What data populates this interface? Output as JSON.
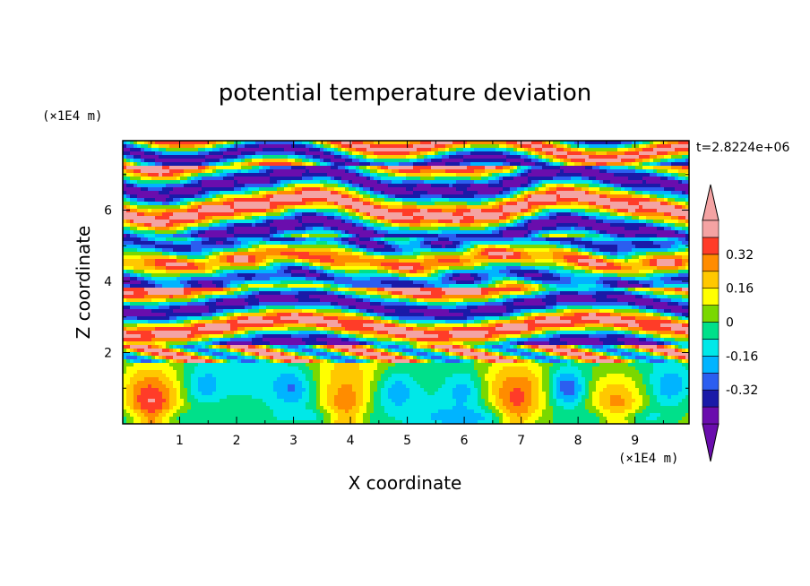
{
  "chart_data": {
    "type": "heatmap",
    "title": "potential temperature deviation",
    "xlabel": "X coordinate",
    "ylabel": "Z coordinate",
    "x_unit": "(×1E4 m)",
    "y_unit": "(×1E4 m)",
    "time_label": "t=2.8224e+06",
    "xlim": [
      0,
      9.95
    ],
    "ylim": [
      0,
      7.95
    ],
    "x_ticks": [
      1,
      2,
      3,
      4,
      5,
      6,
      7,
      8,
      9
    ],
    "x_tick_labels": [
      "1",
      "2",
      "3",
      "4",
      "5",
      "6",
      "7",
      "8",
      "9"
    ],
    "y_ticks": [
      2,
      4,
      6
    ],
    "y_tick_labels": [
      "2",
      "4",
      "6"
    ],
    "colorbar": {
      "levels": [
        -0.48,
        -0.4,
        -0.32,
        -0.24,
        -0.16,
        -0.08,
        0,
        0.08,
        0.16,
        0.24,
        0.32,
        0.4,
        0.48
      ],
      "labels": [
        "-0.32",
        "-0.16",
        "0",
        "0.16",
        "0.32"
      ],
      "label_values": [
        -0.32,
        -0.16,
        0,
        0.16,
        0.32
      ],
      "colors": [
        "#6a0dad",
        "#1a1aa8",
        "#2b5ef0",
        "#00b4ff",
        "#00e8e8",
        "#00e08a",
        "#7ad800",
        "#ffff00",
        "#ffc800",
        "#ff8c00",
        "#ff3c28",
        "#f4a3a3"
      ],
      "under_color": "#6a0dad",
      "over_color": "#f4a3a3"
    },
    "layers": [
      {
        "z": [
          7.2,
          7.95
        ],
        "field": "alt-high"
      },
      {
        "z": [
          5.2,
          7.2
        ],
        "field": "stripes-upper"
      },
      {
        "z": [
          3.8,
          5.2
        ],
        "field": "mixed-warm"
      },
      {
        "z": [
          2.2,
          3.8
        ],
        "field": "stripes-lower"
      },
      {
        "z": [
          1.7,
          2.2
        ],
        "field": "transition"
      },
      {
        "z": [
          0,
          1.7
        ],
        "field": "boundary-layer"
      }
    ],
    "plumes_x": [
      0.5,
      3.9,
      6.9,
      8.7
    ]
  }
}
